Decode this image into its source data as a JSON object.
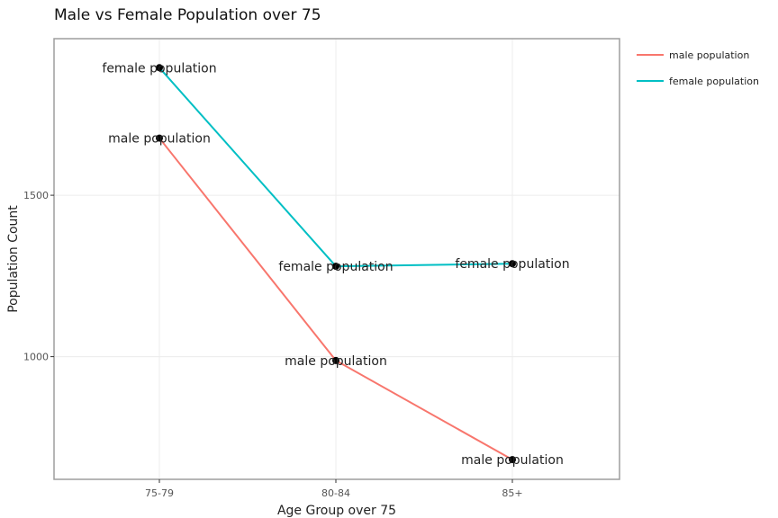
{
  "chart_data": {
    "type": "line",
    "title": "Male vs Female Population over 75",
    "xlabel": "Age Group over 75",
    "ylabel": "Population Count",
    "categories": [
      "75-79",
      "80-84",
      "85+"
    ],
    "ylim": [
      620,
      1985
    ],
    "yticks": [
      1000,
      1500
    ],
    "grid": true,
    "legend_position": "right",
    "series": [
      {
        "name": "male population",
        "color": "#F8766D",
        "values": [
          1677,
          988,
          681
        ],
        "labels": [
          "male population",
          "male population",
          "male population"
        ]
      },
      {
        "name": "female population",
        "color": "#00BFC4",
        "values": [
          1895,
          1280,
          1288
        ],
        "labels": [
          "female population",
          "female population",
          "female population"
        ]
      }
    ]
  }
}
